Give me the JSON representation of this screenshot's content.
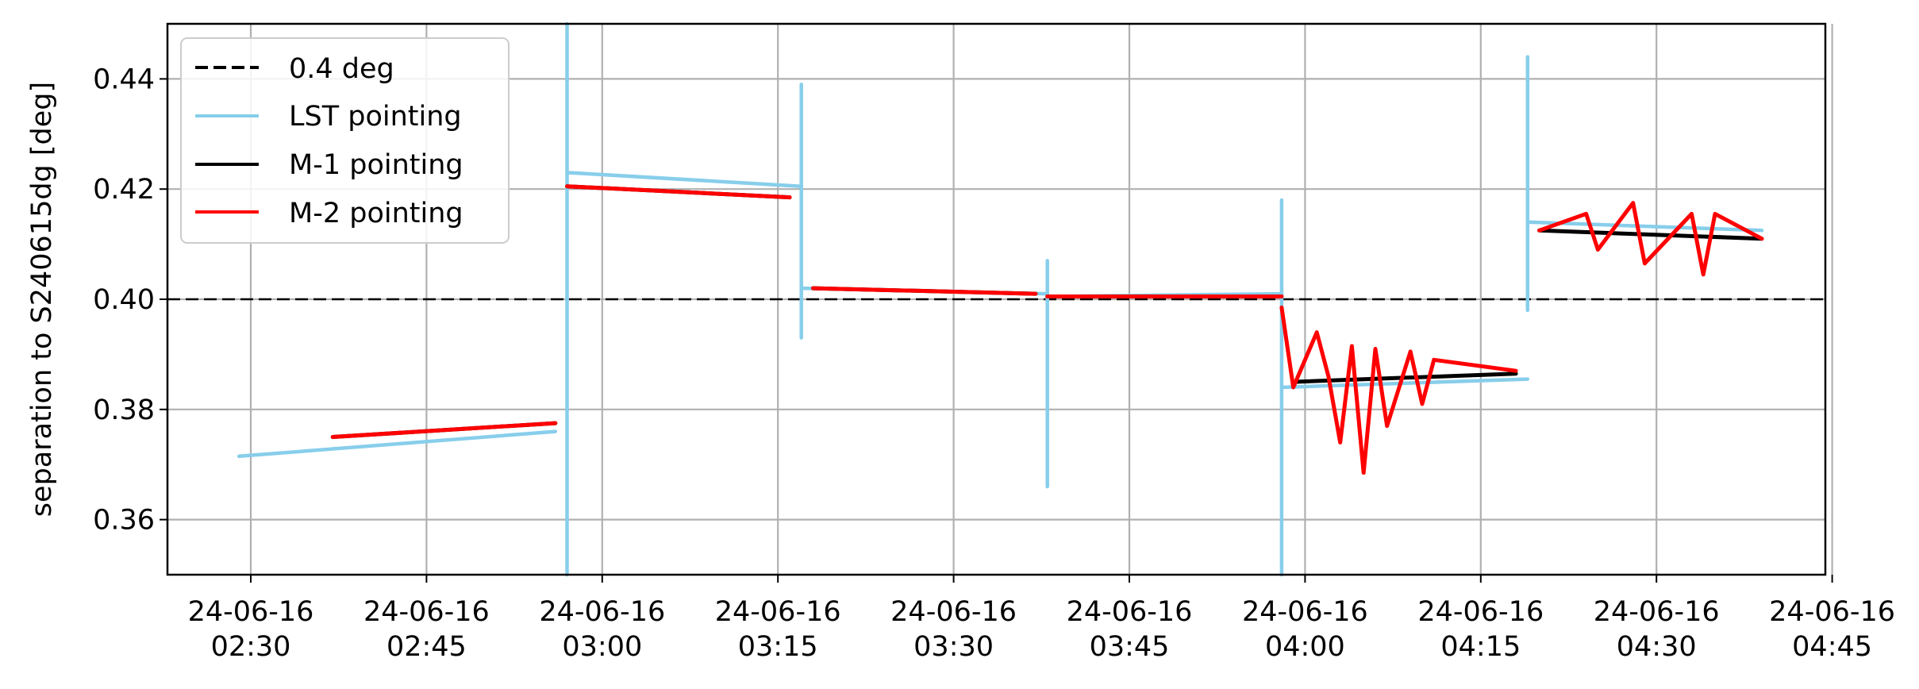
{
  "chart_data": {
    "type": "line",
    "title": "",
    "xlabel": "",
    "ylabel": "separation to S240615dg [deg]",
    "xlim": [
      "24-06-16 02:25",
      "24-06-16 04:45"
    ],
    "ylim": [
      0.35,
      0.45
    ],
    "grid": true,
    "legend_position": "top-left",
    "x_ticks": [
      {
        "value": "24-06-16 02:30",
        "line1": "24-06-16",
        "line2": "02:30"
      },
      {
        "value": "24-06-16 02:45",
        "line1": "24-06-16",
        "line2": "02:45"
      },
      {
        "value": "24-06-16 03:00",
        "line1": "24-06-16",
        "line2": "03:00"
      },
      {
        "value": "24-06-16 03:15",
        "line1": "24-06-16",
        "line2": "03:15"
      },
      {
        "value": "24-06-16 03:30",
        "line1": "24-06-16",
        "line2": "03:30"
      },
      {
        "value": "24-06-16 03:45",
        "line1": "24-06-16",
        "line2": "03:45"
      },
      {
        "value": "24-06-16 04:00",
        "line1": "24-06-16",
        "line2": "04:00"
      },
      {
        "value": "24-06-16 04:15",
        "line1": "24-06-16",
        "line2": "04:15"
      },
      {
        "value": "24-06-16 04:30",
        "line1": "24-06-16",
        "line2": "04:30"
      },
      {
        "value": "24-06-16 04:45",
        "line1": "24-06-16",
        "line2": "04:45"
      }
    ],
    "y_ticks": [
      {
        "value": 0.36,
        "label": "0.36"
      },
      {
        "value": 0.38,
        "label": "0.38"
      },
      {
        "value": 0.4,
        "label": "0.40"
      },
      {
        "value": 0.42,
        "label": "0.42"
      },
      {
        "value": 0.44,
        "label": "0.44"
      }
    ],
    "reference_lines": [
      {
        "name": "0.4 deg",
        "y": 0.4,
        "color": "#000000",
        "dash": true
      }
    ],
    "series": [
      {
        "name": "LST pointing",
        "color": "#87CEEB",
        "segments": [
          [
            [
              "24-06-16 02:29",
              0.3715
            ],
            [
              "24-06-16 02:56",
              0.376
            ]
          ],
          [
            [
              "24-06-16 02:57",
              0.35
            ],
            [
              "24-06-16 02:57",
              0.45
            ],
            [
              "24-06-16 02:57",
              0.406
            ],
            [
              "24-06-16 02:57",
              0.423
            ],
            [
              "24-06-16 03:17",
              0.4205
            ]
          ],
          [
            [
              "24-06-16 03:17",
              0.439
            ],
            [
              "24-06-16 03:17",
              0.393
            ],
            [
              "24-06-16 03:17",
              0.402
            ],
            [
              "24-06-16 03:38",
              0.401
            ]
          ],
          [
            [
              "24-06-16 03:38",
              0.407
            ],
            [
              "24-06-16 03:38",
              0.366
            ],
            [
              "24-06-16 03:38",
              0.4005
            ],
            [
              "24-06-16 03:58",
              0.401
            ]
          ],
          [
            [
              "24-06-16 03:58",
              0.418
            ],
            [
              "24-06-16 03:58",
              0.35
            ],
            [
              "24-06-16 03:58",
              0.384
            ],
            [
              "24-06-16 04:19",
              0.3855
            ]
          ],
          [
            [
              "24-06-16 04:19",
              0.444
            ],
            [
              "24-06-16 04:19",
              0.398
            ],
            [
              "24-06-16 04:19",
              0.414
            ],
            [
              "24-06-16 04:39",
              0.4125
            ]
          ]
        ]
      },
      {
        "name": "M-1 pointing",
        "color": "#000000",
        "segments": [
          [
            [
              "24-06-16 02:37",
              0.375
            ],
            [
              "24-06-16 02:56",
              0.3775
            ]
          ],
          [
            [
              "24-06-16 02:57",
              0.4205
            ],
            [
              "24-06-16 03:16",
              0.4185
            ]
          ],
          [
            [
              "24-06-16 03:18",
              0.402
            ],
            [
              "24-06-16 03:37",
              0.401
            ]
          ],
          [
            [
              "24-06-16 03:38",
              0.4005
            ],
            [
              "24-06-16 03:58",
              0.4005
            ]
          ],
          [
            [
              "24-06-16 03:59",
              0.385
            ],
            [
              "24-06-16 04:18",
              0.3865
            ]
          ],
          [
            [
              "24-06-16 04:20",
              0.4125
            ],
            [
              "24-06-16 04:39",
              0.411
            ]
          ]
        ]
      },
      {
        "name": "M-2 pointing",
        "color": "#FF0000",
        "segments": [
          [
            [
              "24-06-16 02:37",
              0.375
            ],
            [
              "24-06-16 02:56",
              0.3775
            ]
          ],
          [
            [
              "24-06-16 02:57",
              0.4205
            ],
            [
              "24-06-16 03:16",
              0.4185
            ]
          ],
          [
            [
              "24-06-16 03:18",
              0.402
            ],
            [
              "24-06-16 03:37",
              0.401
            ]
          ],
          [
            [
              "24-06-16 03:38",
              0.4005
            ],
            [
              "24-06-16 03:58",
              0.4005
            ]
          ],
          [
            [
              "24-06-16 03:58",
              0.3985
            ],
            [
              "24-06-16 03:59",
              0.384
            ],
            [
              "24-06-16 04:01",
              0.394
            ],
            [
              "24-06-16 04:02",
              0.386
            ],
            [
              "24-06-16 04:03",
              0.374
            ],
            [
              "24-06-16 04:04",
              0.3915
            ],
            [
              "24-06-16 04:05",
              0.3685
            ],
            [
              "24-06-16 04:06",
              0.391
            ],
            [
              "24-06-16 04:07",
              0.377
            ],
            [
              "24-06-16 04:09",
              0.3905
            ],
            [
              "24-06-16 04:10",
              0.381
            ],
            [
              "24-06-16 04:11",
              0.389
            ],
            [
              "24-06-16 04:18",
              0.387
            ]
          ],
          [
            [
              "24-06-16 04:20",
              0.4125
            ],
            [
              "24-06-16 04:24",
              0.4155
            ],
            [
              "24-06-16 04:25",
              0.409
            ],
            [
              "24-06-16 04:28",
              0.4175
            ],
            [
              "24-06-16 04:29",
              0.4065
            ],
            [
              "24-06-16 04:33",
              0.4155
            ],
            [
              "24-06-16 04:34",
              0.4045
            ],
            [
              "24-06-16 04:35",
              0.4155
            ],
            [
              "24-06-16 04:39",
              0.411
            ]
          ]
        ]
      }
    ]
  }
}
